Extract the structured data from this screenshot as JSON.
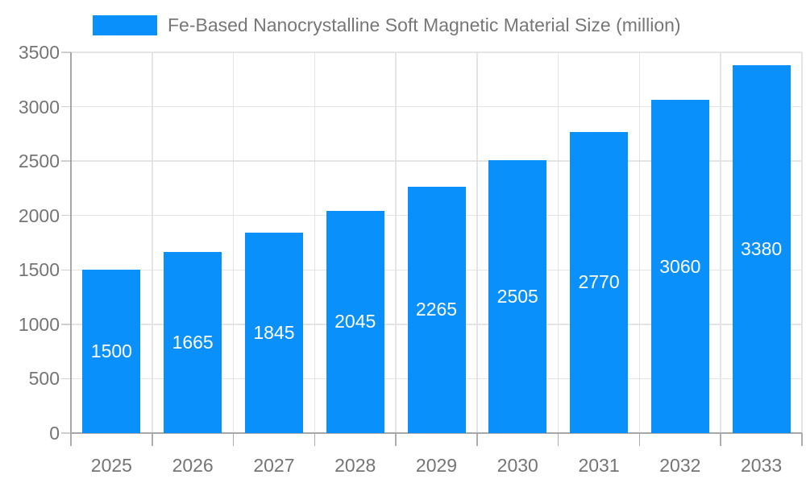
{
  "chart_data": {
    "type": "bar",
    "title": "Fe-Based Nanocrystalline Soft Magnetic Material Size (million)",
    "categories": [
      "2025",
      "2026",
      "2027",
      "2028",
      "2029",
      "2030",
      "2031",
      "2032",
      "2033"
    ],
    "values": [
      1500,
      1665,
      1845,
      2045,
      2265,
      2505,
      2770,
      3060,
      3380
    ],
    "xlabel": "",
    "ylabel": "",
    "ylim": [
      0,
      3500
    ],
    "yticks": [
      0,
      500,
      1000,
      1500,
      2000,
      2500,
      3000,
      3500
    ],
    "grid": "on",
    "legend_position": "top",
    "value_labels": "inside-center",
    "colors": {
      "bar": "#0a90fa",
      "grid": "#e4e4e4",
      "axis": "#a8a8a8",
      "tick_label": "#757575",
      "legend_text": "#777777",
      "value_label": "#ffffff",
      "background": "#ffffff"
    }
  }
}
